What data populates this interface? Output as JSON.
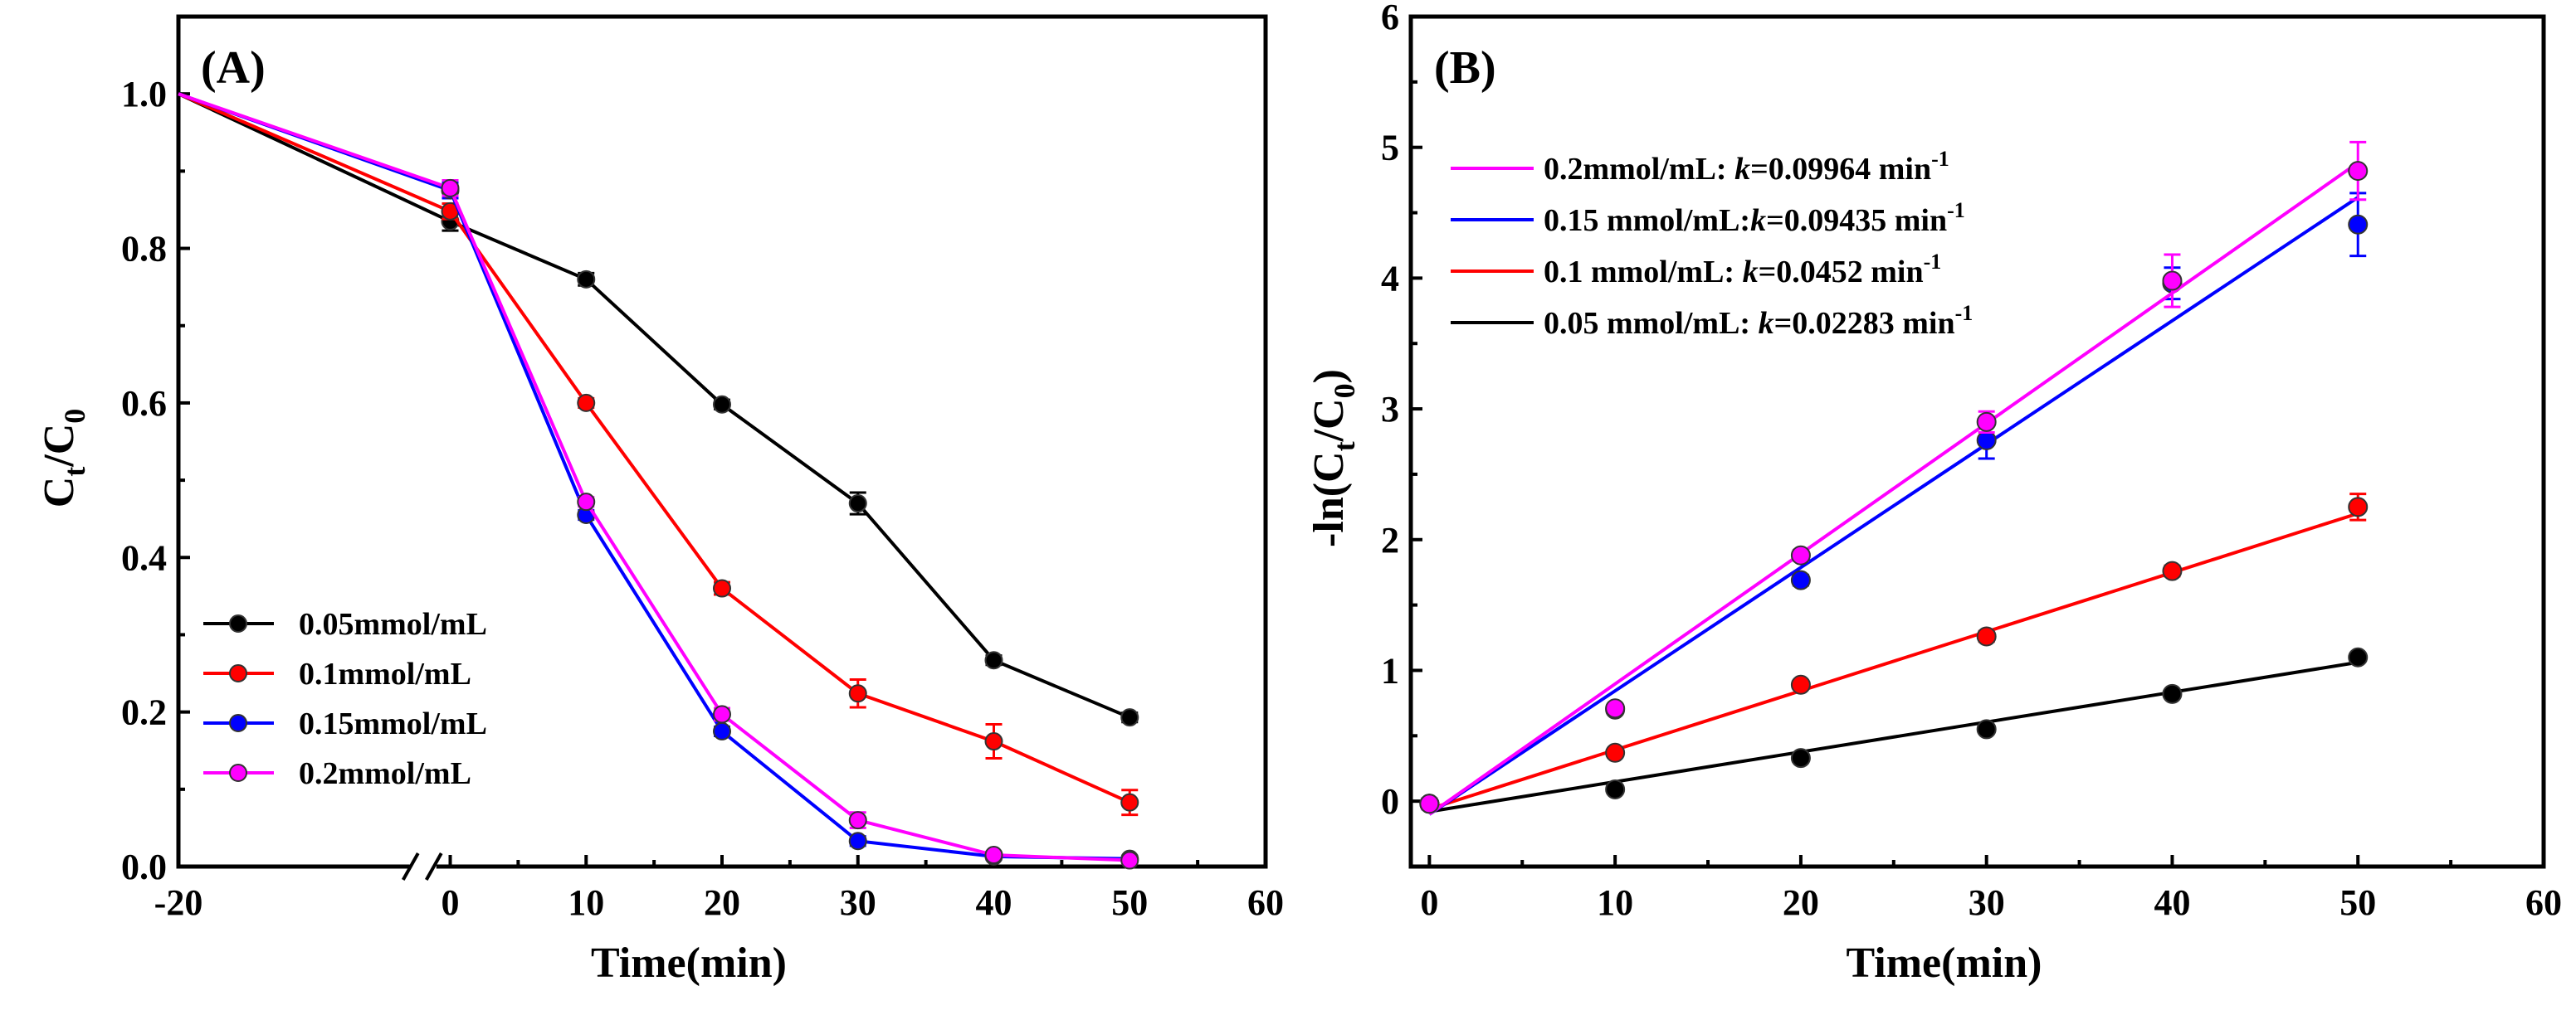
{
  "chart_data": [
    {
      "panel": "(A)",
      "type": "line",
      "xlabel": "Time(min)",
      "ylabel_main": "C",
      "ylabel_sub1": "t",
      "ylabel_sep": "/C",
      "ylabel_sub2": "0",
      "xlim": [
        -20,
        60
      ],
      "ylim": [
        0.0,
        1.1
      ],
      "x_ticks": [
        -20,
        0,
        10,
        20,
        30,
        40,
        50,
        60
      ],
      "x_tick_labels": [
        "-20",
        "0",
        "10",
        "20",
        "30",
        "40",
        "50",
        "60"
      ],
      "y_ticks": [
        0.0,
        0.2,
        0.4,
        0.6,
        0.8,
        1.0
      ],
      "y_tick_labels": [
        "0.0",
        "0.2",
        "0.4",
        "0.6",
        "0.8",
        "1.0"
      ],
      "axis_break_at": -2,
      "legend_position": "bottom-left",
      "series": [
        {
          "name": "0.05mmol/mL",
          "color": "#000000",
          "x": [
            -20,
            0,
            10,
            20,
            30,
            40,
            50
          ],
          "values": [
            1.0,
            0.835,
            0.76,
            0.598,
            0.47,
            0.267,
            0.193
          ],
          "errors": [
            0,
            0.012,
            0.008,
            0.006,
            0.014,
            0.006,
            0.006
          ]
        },
        {
          "name": "0.1mmol/mL",
          "color": "#ff0000",
          "x": [
            -20,
            0,
            10,
            20,
            30,
            40,
            50
          ],
          "values": [
            1.0,
            0.848,
            0.6,
            0.36,
            0.224,
            0.162,
            0.083
          ],
          "errors": [
            0,
            0.01,
            0.006,
            0.008,
            0.018,
            0.022,
            0.016
          ]
        },
        {
          "name": "0.15mmol/mL",
          "color": "#0000ff",
          "x": [
            -20,
            0,
            10,
            20,
            30,
            40,
            50
          ],
          "values": [
            1.0,
            0.875,
            0.455,
            0.175,
            0.033,
            0.013,
            0.01
          ],
          "errors": [
            0,
            0.01,
            0.006,
            0.006,
            0.006,
            0.004,
            0.004
          ]
        },
        {
          "name": "0.2mmol/mL",
          "color": "#ff00ff",
          "x": [
            -20,
            0,
            10,
            20,
            30,
            40,
            50
          ],
          "values": [
            1.0,
            0.878,
            0.472,
            0.197,
            0.06,
            0.015,
            0.008
          ],
          "errors": [
            0,
            0.01,
            0.006,
            0.008,
            0.01,
            0.004,
            0.004
          ]
        }
      ]
    },
    {
      "panel": "(B)",
      "type": "scatter",
      "xlabel": "Time(min)",
      "ylabel_main": "-ln(C",
      "ylabel_sub1": "t",
      "ylabel_sep": "/C",
      "ylabel_sub2": "0",
      "ylabel_end": ")",
      "xlim": [
        -1,
        60
      ],
      "ylim": [
        -0.5,
        6
      ],
      "x_ticks": [
        0,
        10,
        20,
        30,
        40,
        50,
        60
      ],
      "x_tick_labels": [
        "0",
        "10",
        "20",
        "30",
        "40",
        "50",
        "60"
      ],
      "y_ticks": [
        0,
        1,
        2,
        3,
        4,
        5,
        6
      ],
      "y_tick_labels": [
        "0",
        "1",
        "2",
        "3",
        "4",
        "5",
        "6"
      ],
      "legend_position": "top-left",
      "series": [
        {
          "name": "0.2mmol/mL",
          "legend_prefix": "0.2mmol/mL: ",
          "k_symbol": "k",
          "k_value": "=0.09964 min",
          "k_unit_exp": "-1",
          "color": "#ff00ff",
          "x": [
            0,
            10,
            20,
            30,
            40,
            50
          ],
          "values": [
            -0.02,
            0.71,
            1.88,
            2.9,
            3.98,
            4.82
          ],
          "errors": [
            0.04,
            0.03,
            0.04,
            0.08,
            0.2,
            0.22
          ],
          "fit": {
            "intercept": -0.1,
            "slope": 0.09964
          }
        },
        {
          "name": "0.15 mmol/mL",
          "legend_prefix": "0.15 mmol/mL:",
          "k_symbol": "k",
          "k_value": "=0.09435 min",
          "k_unit_exp": "-1",
          "color": "#0000ff",
          "x": [
            0,
            10,
            20,
            30,
            40,
            50
          ],
          "values": [
            -0.02,
            0.7,
            1.69,
            2.76,
            3.96,
            4.41
          ],
          "errors": [
            0.04,
            0.03,
            0.04,
            0.14,
            0.12,
            0.24
          ],
          "fit": {
            "intercept": -0.1,
            "slope": 0.09435
          }
        },
        {
          "name": "0.1 mmol/mL",
          "legend_prefix": "0.1 mmol/mL: ",
          "k_symbol": "k",
          "k_value": "=0.0452 min",
          "k_unit_exp": "-1",
          "color": "#ff0000",
          "x": [
            0,
            10,
            20,
            30,
            40,
            50
          ],
          "values": [
            -0.02,
            0.37,
            0.89,
            1.26,
            1.76,
            2.25
          ],
          "errors": [
            0.03,
            0.03,
            0.03,
            0.04,
            0.04,
            0.1
          ],
          "fit": {
            "intercept": -0.06,
            "slope": 0.0452
          }
        },
        {
          "name": "0.05 mmol/mL",
          "legend_prefix": "0.05 mmol/mL: ",
          "k_symbol": "k",
          "k_value": "=0.02283 min",
          "k_unit_exp": "-1",
          "color": "#000000",
          "x": [
            0,
            10,
            20,
            30,
            40,
            50
          ],
          "values": [
            -0.02,
            0.09,
            0.33,
            0.55,
            0.82,
            1.1
          ],
          "errors": [
            0.02,
            0.02,
            0.02,
            0.02,
            0.02,
            0.03
          ],
          "fit": {
            "intercept": -0.08,
            "slope": 0.02283
          }
        }
      ]
    }
  ]
}
